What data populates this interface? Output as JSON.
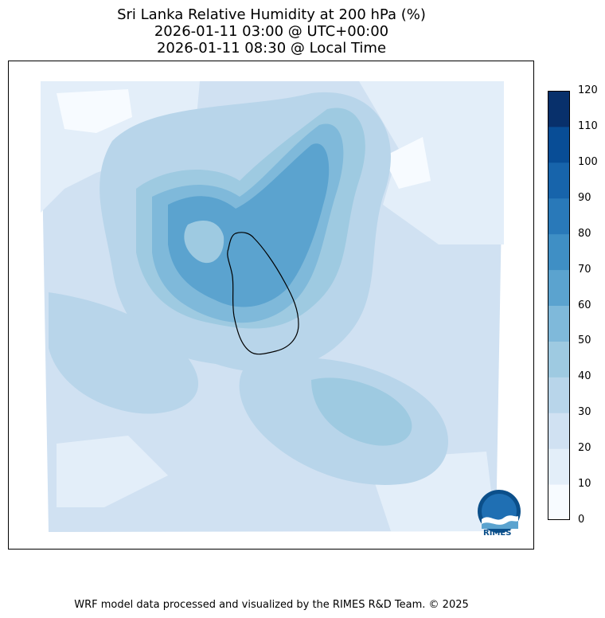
{
  "title": {
    "line1": "Sri Lanka Relative Humidity at 200 hPa (%)",
    "line2": "2026-01-11 03:00 @ UTC+00:00",
    "line3": "2026-01-11 08:30 @ Local Time"
  },
  "colorbar": {
    "levels": [
      0,
      10,
      20,
      30,
      40,
      50,
      60,
      70,
      80,
      90,
      100,
      110,
      120
    ],
    "colors": [
      "#f7fbff",
      "#e3eef9",
      "#d0e1f2",
      "#b8d5ea",
      "#9ecae1",
      "#7fb9da",
      "#5ba3cf",
      "#3f8fc5",
      "#2979b9",
      "#1764ab",
      "#084d96",
      "#08306b"
    ]
  },
  "logo": {
    "text": "RIMES"
  },
  "footer": {
    "text": "WRF model data processed and visualized by the RIMES R&D Team. © 2025"
  }
}
